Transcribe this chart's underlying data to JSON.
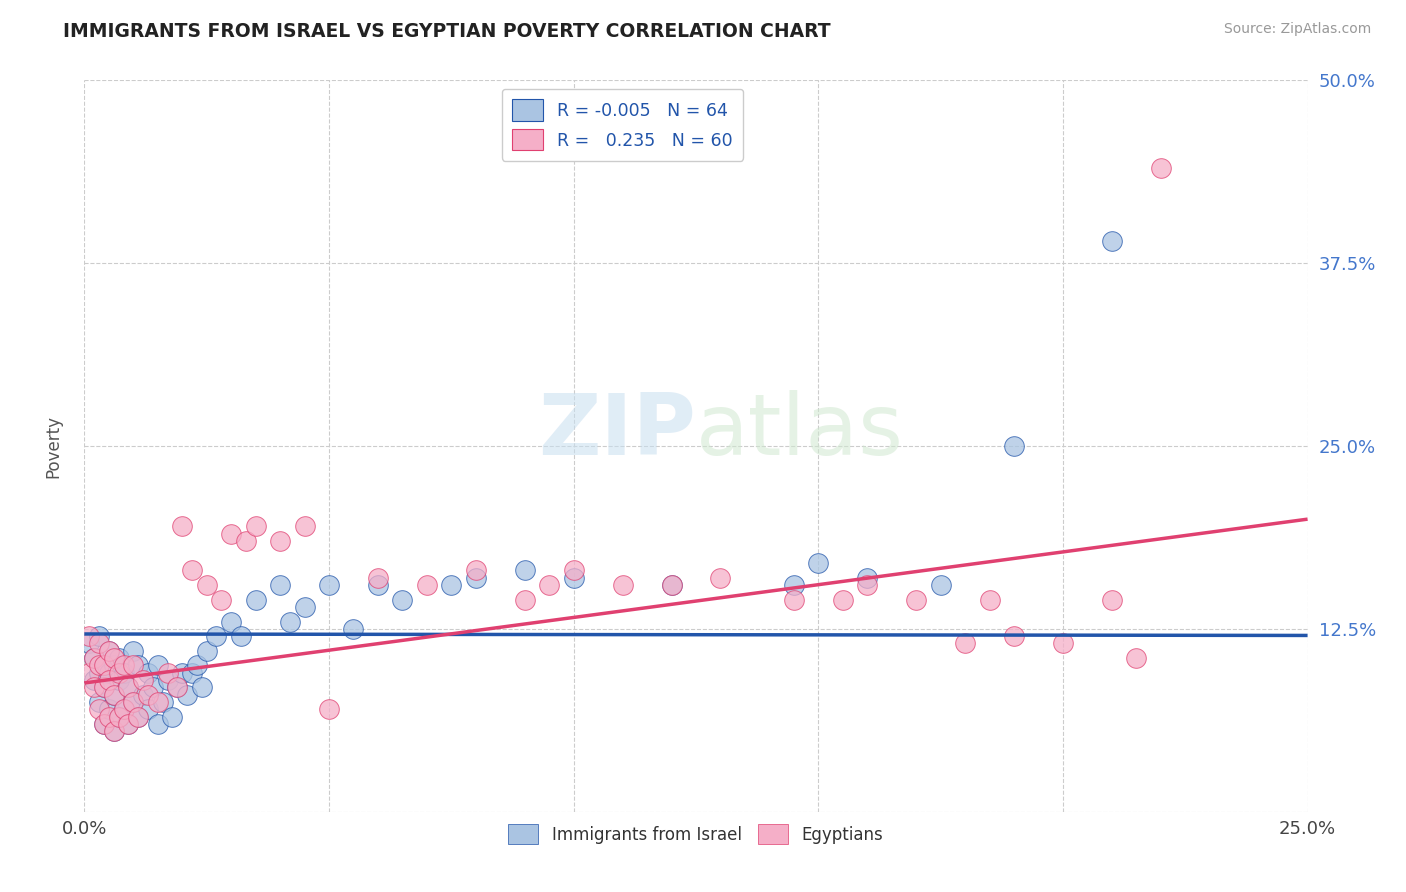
{
  "title": "IMMIGRANTS FROM ISRAEL VS EGYPTIAN POVERTY CORRELATION CHART",
  "source": "Source: ZipAtlas.com",
  "ylabel": "Poverty",
  "color_israel": "#aac4e2",
  "color_egypt": "#f5afc8",
  "trendline_israel_color": "#2255aa",
  "trendline_egypt_color": "#e04070",
  "background_color": "#ffffff",
  "xlim": [
    0.0,
    0.25
  ],
  "ylim": [
    0.0,
    0.5
  ],
  "ytick_positions": [
    0.0,
    0.125,
    0.25,
    0.375,
    0.5
  ],
  "ytick_labels_right": [
    "",
    "12.5%",
    "25.0%",
    "37.5%",
    "50.0%"
  ],
  "xtick_positions": [
    0.0,
    0.05,
    0.1,
    0.15,
    0.2,
    0.25
  ],
  "xtick_labels": [
    "0.0%",
    "",
    "",
    "",
    "",
    "25.0%"
  ],
  "legend_label1": "R = -0.005   N = 64",
  "legend_label2": "R =   0.235   N = 60",
  "bottom_legend1": "Immigrants from Israel",
  "bottom_legend2": "Egyptians",
  "israel_x": [
    0.001,
    0.002,
    0.002,
    0.003,
    0.003,
    0.003,
    0.004,
    0.004,
    0.004,
    0.005,
    0.005,
    0.005,
    0.006,
    0.006,
    0.006,
    0.007,
    0.007,
    0.007,
    0.008,
    0.008,
    0.009,
    0.009,
    0.01,
    0.01,
    0.011,
    0.011,
    0.012,
    0.013,
    0.013,
    0.014,
    0.015,
    0.015,
    0.016,
    0.017,
    0.018,
    0.019,
    0.02,
    0.021,
    0.022,
    0.023,
    0.024,
    0.025,
    0.027,
    0.03,
    0.032,
    0.035,
    0.04,
    0.042,
    0.045,
    0.05,
    0.055,
    0.06,
    0.065,
    0.075,
    0.08,
    0.09,
    0.1,
    0.12,
    0.145,
    0.15,
    0.16,
    0.175,
    0.19,
    0.21
  ],
  "israel_y": [
    0.115,
    0.09,
    0.105,
    0.075,
    0.095,
    0.12,
    0.06,
    0.085,
    0.1,
    0.07,
    0.095,
    0.11,
    0.055,
    0.08,
    0.1,
    0.065,
    0.09,
    0.105,
    0.07,
    0.095,
    0.06,
    0.085,
    0.075,
    0.11,
    0.065,
    0.1,
    0.08,
    0.07,
    0.095,
    0.085,
    0.06,
    0.1,
    0.075,
    0.09,
    0.065,
    0.085,
    0.095,
    0.08,
    0.095,
    0.1,
    0.085,
    0.11,
    0.12,
    0.13,
    0.12,
    0.145,
    0.155,
    0.13,
    0.14,
    0.155,
    0.125,
    0.155,
    0.145,
    0.155,
    0.16,
    0.165,
    0.16,
    0.155,
    0.155,
    0.17,
    0.16,
    0.155,
    0.25,
    0.39
  ],
  "egypt_x": [
    0.001,
    0.001,
    0.002,
    0.002,
    0.003,
    0.003,
    0.003,
    0.004,
    0.004,
    0.004,
    0.005,
    0.005,
    0.005,
    0.006,
    0.006,
    0.006,
    0.007,
    0.007,
    0.008,
    0.008,
    0.009,
    0.009,
    0.01,
    0.01,
    0.011,
    0.012,
    0.013,
    0.015,
    0.017,
    0.019,
    0.02,
    0.022,
    0.025,
    0.028,
    0.03,
    0.033,
    0.035,
    0.04,
    0.045,
    0.05,
    0.06,
    0.07,
    0.08,
    0.09,
    0.095,
    0.1,
    0.11,
    0.12,
    0.13,
    0.145,
    0.155,
    0.16,
    0.17,
    0.18,
    0.185,
    0.19,
    0.2,
    0.21,
    0.215,
    0.22
  ],
  "egypt_y": [
    0.12,
    0.095,
    0.105,
    0.085,
    0.07,
    0.1,
    0.115,
    0.06,
    0.085,
    0.1,
    0.065,
    0.09,
    0.11,
    0.055,
    0.08,
    0.105,
    0.065,
    0.095,
    0.07,
    0.1,
    0.06,
    0.085,
    0.075,
    0.1,
    0.065,
    0.09,
    0.08,
    0.075,
    0.095,
    0.085,
    0.195,
    0.165,
    0.155,
    0.145,
    0.19,
    0.185,
    0.195,
    0.185,
    0.195,
    0.07,
    0.16,
    0.155,
    0.165,
    0.145,
    0.155,
    0.165,
    0.155,
    0.155,
    0.16,
    0.145,
    0.145,
    0.155,
    0.145,
    0.115,
    0.145,
    0.12,
    0.115,
    0.145,
    0.105,
    0.44
  ],
  "trendline_x": [
    0.0,
    0.25
  ],
  "israel_trend_y": [
    0.1215,
    0.1205
  ],
  "egypt_trend_y": [
    0.088,
    0.2
  ],
  "dashed_line_y": 0.125,
  "dashed_line_xstart": 0.76
}
